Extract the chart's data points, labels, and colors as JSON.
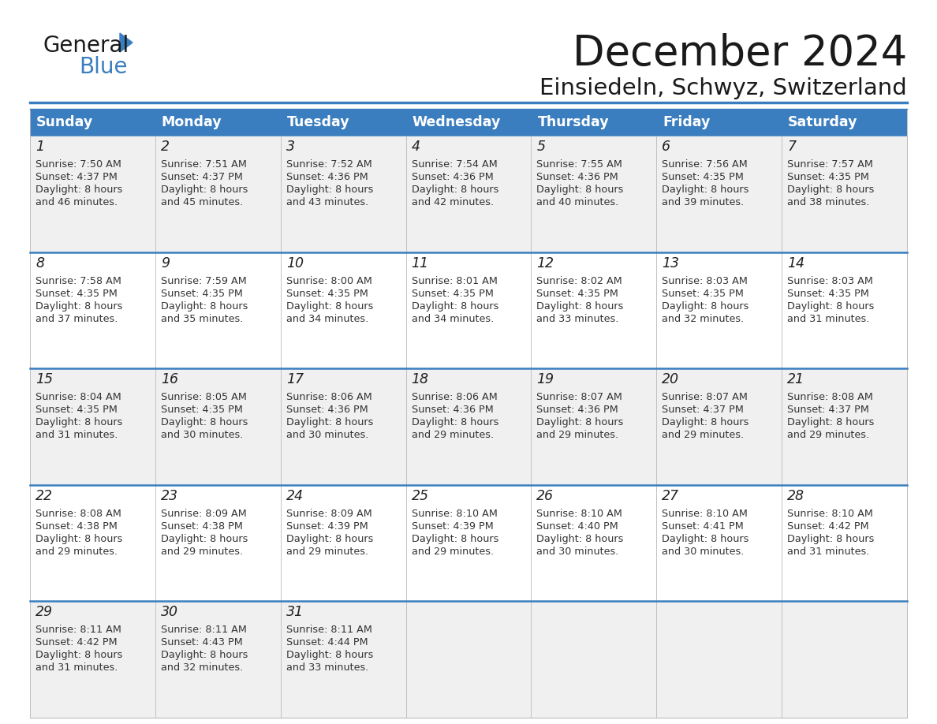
{
  "title": "December 2024",
  "subtitle": "Einsiedeln, Schwyz, Switzerland",
  "header_color": "#3a7ebf",
  "header_text_color": "#ffffff",
  "cell_bg_even": "#f0f0f0",
  "cell_bg_odd": "#ffffff",
  "separator_color": "#3a7ebf",
  "cell_border_color": "#bbbbbb",
  "day_headers": [
    "Sunday",
    "Monday",
    "Tuesday",
    "Wednesday",
    "Thursday",
    "Friday",
    "Saturday"
  ],
  "weeks": [
    [
      {
        "day": "1",
        "sunrise": "7:50 AM",
        "sunset": "4:37 PM",
        "daylight_h": "8 hours",
        "daylight_m": "and 46 minutes."
      },
      {
        "day": "2",
        "sunrise": "7:51 AM",
        "sunset": "4:37 PM",
        "daylight_h": "8 hours",
        "daylight_m": "and 45 minutes."
      },
      {
        "day": "3",
        "sunrise": "7:52 AM",
        "sunset": "4:36 PM",
        "daylight_h": "8 hours",
        "daylight_m": "and 43 minutes."
      },
      {
        "day": "4",
        "sunrise": "7:54 AM",
        "sunset": "4:36 PM",
        "daylight_h": "8 hours",
        "daylight_m": "and 42 minutes."
      },
      {
        "day": "5",
        "sunrise": "7:55 AM",
        "sunset": "4:36 PM",
        "daylight_h": "8 hours",
        "daylight_m": "and 40 minutes."
      },
      {
        "day": "6",
        "sunrise": "7:56 AM",
        "sunset": "4:35 PM",
        "daylight_h": "8 hours",
        "daylight_m": "and 39 minutes."
      },
      {
        "day": "7",
        "sunrise": "7:57 AM",
        "sunset": "4:35 PM",
        "daylight_h": "8 hours",
        "daylight_m": "and 38 minutes."
      }
    ],
    [
      {
        "day": "8",
        "sunrise": "7:58 AM",
        "sunset": "4:35 PM",
        "daylight_h": "8 hours",
        "daylight_m": "and 37 minutes."
      },
      {
        "day": "9",
        "sunrise": "7:59 AM",
        "sunset": "4:35 PM",
        "daylight_h": "8 hours",
        "daylight_m": "and 35 minutes."
      },
      {
        "day": "10",
        "sunrise": "8:00 AM",
        "sunset": "4:35 PM",
        "daylight_h": "8 hours",
        "daylight_m": "and 34 minutes."
      },
      {
        "day": "11",
        "sunrise": "8:01 AM",
        "sunset": "4:35 PM",
        "daylight_h": "8 hours",
        "daylight_m": "and 34 minutes."
      },
      {
        "day": "12",
        "sunrise": "8:02 AM",
        "sunset": "4:35 PM",
        "daylight_h": "8 hours",
        "daylight_m": "and 33 minutes."
      },
      {
        "day": "13",
        "sunrise": "8:03 AM",
        "sunset": "4:35 PM",
        "daylight_h": "8 hours",
        "daylight_m": "and 32 minutes."
      },
      {
        "day": "14",
        "sunrise": "8:03 AM",
        "sunset": "4:35 PM",
        "daylight_h": "8 hours",
        "daylight_m": "and 31 minutes."
      }
    ],
    [
      {
        "day": "15",
        "sunrise": "8:04 AM",
        "sunset": "4:35 PM",
        "daylight_h": "8 hours",
        "daylight_m": "and 31 minutes."
      },
      {
        "day": "16",
        "sunrise": "8:05 AM",
        "sunset": "4:35 PM",
        "daylight_h": "8 hours",
        "daylight_m": "and 30 minutes."
      },
      {
        "day": "17",
        "sunrise": "8:06 AM",
        "sunset": "4:36 PM",
        "daylight_h": "8 hours",
        "daylight_m": "and 30 minutes."
      },
      {
        "day": "18",
        "sunrise": "8:06 AM",
        "sunset": "4:36 PM",
        "daylight_h": "8 hours",
        "daylight_m": "and 29 minutes."
      },
      {
        "day": "19",
        "sunrise": "8:07 AM",
        "sunset": "4:36 PM",
        "daylight_h": "8 hours",
        "daylight_m": "and 29 minutes."
      },
      {
        "day": "20",
        "sunrise": "8:07 AM",
        "sunset": "4:37 PM",
        "daylight_h": "8 hours",
        "daylight_m": "and 29 minutes."
      },
      {
        "day": "21",
        "sunrise": "8:08 AM",
        "sunset": "4:37 PM",
        "daylight_h": "8 hours",
        "daylight_m": "and 29 minutes."
      }
    ],
    [
      {
        "day": "22",
        "sunrise": "8:08 AM",
        "sunset": "4:38 PM",
        "daylight_h": "8 hours",
        "daylight_m": "and 29 minutes."
      },
      {
        "day": "23",
        "sunrise": "8:09 AM",
        "sunset": "4:38 PM",
        "daylight_h": "8 hours",
        "daylight_m": "and 29 minutes."
      },
      {
        "day": "24",
        "sunrise": "8:09 AM",
        "sunset": "4:39 PM",
        "daylight_h": "8 hours",
        "daylight_m": "and 29 minutes."
      },
      {
        "day": "25",
        "sunrise": "8:10 AM",
        "sunset": "4:39 PM",
        "daylight_h": "8 hours",
        "daylight_m": "and 29 minutes."
      },
      {
        "day": "26",
        "sunrise": "8:10 AM",
        "sunset": "4:40 PM",
        "daylight_h": "8 hours",
        "daylight_m": "and 30 minutes."
      },
      {
        "day": "27",
        "sunrise": "8:10 AM",
        "sunset": "4:41 PM",
        "daylight_h": "8 hours",
        "daylight_m": "and 30 minutes."
      },
      {
        "day": "28",
        "sunrise": "8:10 AM",
        "sunset": "4:42 PM",
        "daylight_h": "8 hours",
        "daylight_m": "and 31 minutes."
      }
    ],
    [
      {
        "day": "29",
        "sunrise": "8:11 AM",
        "sunset": "4:42 PM",
        "daylight_h": "8 hours",
        "daylight_m": "and 31 minutes."
      },
      {
        "day": "30",
        "sunrise": "8:11 AM",
        "sunset": "4:43 PM",
        "daylight_h": "8 hours",
        "daylight_m": "and 32 minutes."
      },
      {
        "day": "31",
        "sunrise": "8:11 AM",
        "sunset": "4:44 PM",
        "daylight_h": "8 hours",
        "daylight_m": "and 33 minutes."
      },
      null,
      null,
      null,
      null
    ]
  ]
}
